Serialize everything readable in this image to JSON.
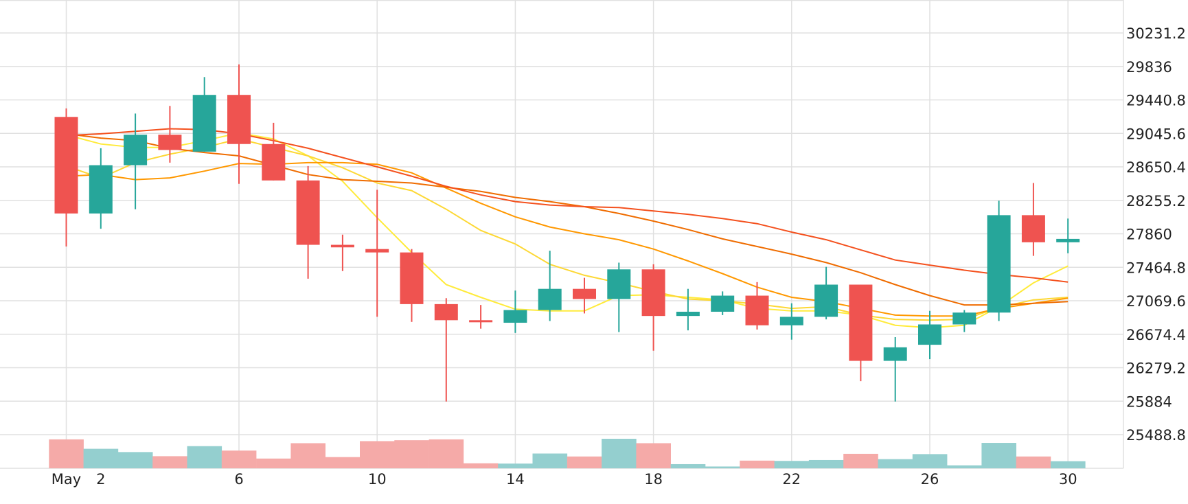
{
  "chart_data": {
    "type": "candlestick",
    "y_range": [
      25291.2,
      30428.8
    ],
    "y_ticks": [
      30231.2,
      29836,
      29440.8,
      29045.6,
      28650.4,
      28255.2,
      27860,
      27464.8,
      27069.6,
      26674.4,
      26279.2,
      25884,
      25488.8
    ],
    "x_tick_labels": [
      {
        "day": 1,
        "label": "May"
      },
      {
        "day": 2,
        "label": "2"
      },
      {
        "day": 6,
        "label": "6"
      },
      {
        "day": 10,
        "label": "10"
      },
      {
        "day": 14,
        "label": "14"
      },
      {
        "day": 18,
        "label": "18"
      },
      {
        "day": 22,
        "label": "22"
      },
      {
        "day": 26,
        "label": "26"
      },
      {
        "day": 30,
        "label": "30"
      }
    ],
    "colors": {
      "up": "#26a69a",
      "down": "#ef5350",
      "up_volume": "#94cfcf",
      "down_volume": "#f5aaa8",
      "grid": "#e0e0e0"
    },
    "candles": [
      {
        "day": 1,
        "open": 29240,
        "high": 29340,
        "low": 27710,
        "close": 28100,
        "volume": 0.98
      },
      {
        "day": 2,
        "open": 28100,
        "high": 28870,
        "low": 27920,
        "close": 28670,
        "volume": 0.66
      },
      {
        "day": 3,
        "open": 28670,
        "high": 29280,
        "low": 28150,
        "close": 29030,
        "volume": 0.55
      },
      {
        "day": 4,
        "open": 29030,
        "high": 29370,
        "low": 28700,
        "close": 28850,
        "volume": 0.41
      },
      {
        "day": 5,
        "open": 28830,
        "high": 29710,
        "low": 28830,
        "close": 29500,
        "volume": 0.75
      },
      {
        "day": 6,
        "open": 29500,
        "high": 29860,
        "low": 28450,
        "close": 28920,
        "volume": 0.6
      },
      {
        "day": 7,
        "open": 28920,
        "high": 29170,
        "low": 28490,
        "close": 28490,
        "volume": 0.33
      },
      {
        "day": 8,
        "open": 28490,
        "high": 28660,
        "low": 27330,
        "close": 27730,
        "volume": 0.85
      },
      {
        "day": 9,
        "open": 27730,
        "high": 27850,
        "low": 27420,
        "close": 27700,
        "volume": 0.38
      },
      {
        "day": 10,
        "open": 27680,
        "high": 28380,
        "low": 26880,
        "close": 27640,
        "volume": 0.92
      },
      {
        "day": 11,
        "open": 27640,
        "high": 27680,
        "low": 26820,
        "close": 27030,
        "volume": 0.95
      },
      {
        "day": 12,
        "open": 27030,
        "high": 27100,
        "low": 25880,
        "close": 26840,
        "volume": 0.98
      },
      {
        "day": 13,
        "open": 26840,
        "high": 27020,
        "low": 26740,
        "close": 26820,
        "volume": 0.17
      },
      {
        "day": 14,
        "open": 26810,
        "high": 27190,
        "low": 26690,
        "close": 26960,
        "volume": 0.16
      },
      {
        "day": 15,
        "open": 26960,
        "high": 27660,
        "low": 26830,
        "close": 27210,
        "volume": 0.5
      },
      {
        "day": 16,
        "open": 27210,
        "high": 27340,
        "low": 26920,
        "close": 27090,
        "volume": 0.4
      },
      {
        "day": 17,
        "open": 27090,
        "high": 27520,
        "low": 26700,
        "close": 27440,
        "volume": 1.0
      },
      {
        "day": 18,
        "open": 27440,
        "high": 27500,
        "low": 26480,
        "close": 26890,
        "volume": 0.85
      },
      {
        "day": 19,
        "open": 26890,
        "high": 27210,
        "low": 26720,
        "close": 26940,
        "volume": 0.14
      },
      {
        "day": 20,
        "open": 26940,
        "high": 27180,
        "low": 26900,
        "close": 27130,
        "volume": 0.06
      },
      {
        "day": 21,
        "open": 27130,
        "high": 27290,
        "low": 26730,
        "close": 26780,
        "volume": 0.26
      },
      {
        "day": 22,
        "open": 26780,
        "high": 27040,
        "low": 26610,
        "close": 26880,
        "volume": 0.25
      },
      {
        "day": 23,
        "open": 26880,
        "high": 27470,
        "low": 26850,
        "close": 27260,
        "volume": 0.28
      },
      {
        "day": 24,
        "open": 27260,
        "high": 27260,
        "low": 26120,
        "close": 26360,
        "volume": 0.49
      },
      {
        "day": 25,
        "open": 26360,
        "high": 26640,
        "low": 25880,
        "close": 26520,
        "volume": 0.31
      },
      {
        "day": 26,
        "open": 26550,
        "high": 26950,
        "low": 26380,
        "close": 26790,
        "volume": 0.48
      },
      {
        "day": 27,
        "open": 26790,
        "high": 26960,
        "low": 26700,
        "close": 26930,
        "volume": 0.1
      },
      {
        "day": 28,
        "open": 26930,
        "high": 28250,
        "low": 26830,
        "close": 28080,
        "volume": 0.86
      },
      {
        "day": 29,
        "open": 28080,
        "high": 28460,
        "low": 27600,
        "close": 27760,
        "volume": 0.4
      },
      {
        "day": 30,
        "open": 27760,
        "high": 28040,
        "low": 27630,
        "close": 27800,
        "volume": 0.24
      }
    ],
    "moving_averages": [
      {
        "color": "#ffeb3b",
        "points": [
          [
            1,
            29030
          ],
          [
            2,
            28920
          ],
          [
            3,
            28880
          ],
          [
            4,
            28880
          ],
          [
            5,
            28960
          ],
          [
            6,
            29050
          ],
          [
            7,
            28980
          ],
          [
            8,
            28780
          ],
          [
            9,
            28480
          ],
          [
            10,
            28050
          ],
          [
            11,
            27640
          ],
          [
            12,
            27260
          ],
          [
            13,
            27110
          ],
          [
            14,
            26970
          ],
          [
            15,
            26950
          ],
          [
            16,
            26950
          ],
          [
            17,
            27130
          ],
          [
            18,
            27140
          ],
          [
            19,
            27110
          ],
          [
            20,
            27080
          ],
          [
            21,
            26980
          ],
          [
            22,
            26950
          ],
          [
            23,
            26950
          ],
          [
            24,
            26900
          ],
          [
            25,
            26780
          ],
          [
            26,
            26750
          ],
          [
            27,
            26780
          ],
          [
            28,
            27000
          ],
          [
            29,
            27280
          ],
          [
            30,
            27480
          ]
        ]
      },
      {
        "color": "#fdd835",
        "points": [
          [
            1,
            28660
          ],
          [
            2,
            28520
          ],
          [
            3,
            28700
          ],
          [
            4,
            28800
          ],
          [
            5,
            28880
          ],
          [
            6,
            28980
          ],
          [
            7,
            28880
          ],
          [
            8,
            28780
          ],
          [
            9,
            28640
          ],
          [
            10,
            28460
          ],
          [
            11,
            28370
          ],
          [
            12,
            28150
          ],
          [
            13,
            27900
          ],
          [
            14,
            27740
          ],
          [
            15,
            27500
          ],
          [
            16,
            27370
          ],
          [
            17,
            27280
          ],
          [
            18,
            27180
          ],
          [
            19,
            27090
          ],
          [
            20,
            27070
          ],
          [
            21,
            27030
          ],
          [
            22,
            26980
          ],
          [
            23,
            27000
          ],
          [
            24,
            26900
          ],
          [
            25,
            26850
          ],
          [
            26,
            26840
          ],
          [
            27,
            26850
          ],
          [
            28,
            26990
          ],
          [
            29,
            27080
          ],
          [
            30,
            27110
          ]
        ]
      },
      {
        "color": "#ff9800",
        "points": [
          [
            1,
            28540
          ],
          [
            2,
            28560
          ],
          [
            3,
            28500
          ],
          [
            4,
            28520
          ],
          [
            5,
            28600
          ],
          [
            6,
            28690
          ],
          [
            7,
            28680
          ],
          [
            8,
            28700
          ],
          [
            9,
            28700
          ],
          [
            10,
            28680
          ],
          [
            11,
            28580
          ],
          [
            12,
            28400
          ],
          [
            13,
            28220
          ],
          [
            14,
            28060
          ],
          [
            15,
            27940
          ],
          [
            16,
            27860
          ],
          [
            17,
            27790
          ],
          [
            18,
            27680
          ],
          [
            19,
            27540
          ],
          [
            20,
            27390
          ],
          [
            21,
            27230
          ],
          [
            22,
            27110
          ],
          [
            23,
            27060
          ],
          [
            24,
            26980
          ],
          [
            25,
            26900
          ],
          [
            26,
            26890
          ],
          [
            27,
            26890
          ],
          [
            28,
            26980
          ],
          [
            29,
            27040
          ],
          [
            30,
            27100
          ]
        ]
      },
      {
        "color": "#ef6c00",
        "points": [
          [
            1,
            29040
          ],
          [
            2,
            28990
          ],
          [
            3,
            28960
          ],
          [
            4,
            28870
          ],
          [
            5,
            28820
          ],
          [
            6,
            28780
          ],
          [
            7,
            28670
          ],
          [
            8,
            28560
          ],
          [
            9,
            28500
          ],
          [
            10,
            28480
          ],
          [
            11,
            28460
          ],
          [
            12,
            28410
          ],
          [
            13,
            28360
          ],
          [
            14,
            28290
          ],
          [
            15,
            28240
          ],
          [
            16,
            28180
          ],
          [
            17,
            28100
          ],
          [
            18,
            28010
          ],
          [
            19,
            27910
          ],
          [
            20,
            27800
          ],
          [
            21,
            27710
          ],
          [
            22,
            27620
          ],
          [
            23,
            27520
          ],
          [
            24,
            27400
          ],
          [
            25,
            27260
          ],
          [
            26,
            27130
          ],
          [
            27,
            27020
          ],
          [
            28,
            27020
          ],
          [
            29,
            27040
          ],
          [
            30,
            27060
          ]
        ]
      },
      {
        "color": "#f4511e",
        "points": [
          [
            1,
            29020
          ],
          [
            2,
            29040
          ],
          [
            3,
            29070
          ],
          [
            4,
            29100
          ],
          [
            5,
            29090
          ],
          [
            6,
            29040
          ],
          [
            7,
            28960
          ],
          [
            8,
            28870
          ],
          [
            9,
            28760
          ],
          [
            10,
            28650
          ],
          [
            11,
            28540
          ],
          [
            12,
            28420
          ],
          [
            13,
            28320
          ],
          [
            14,
            28240
          ],
          [
            15,
            28200
          ],
          [
            16,
            28180
          ],
          [
            17,
            28170
          ],
          [
            18,
            28130
          ],
          [
            19,
            28090
          ],
          [
            20,
            28040
          ],
          [
            21,
            27980
          ],
          [
            22,
            27880
          ],
          [
            23,
            27790
          ],
          [
            24,
            27670
          ],
          [
            25,
            27550
          ],
          [
            26,
            27490
          ],
          [
            27,
            27430
          ],
          [
            28,
            27380
          ],
          [
            29,
            27340
          ],
          [
            30,
            27290
          ]
        ]
      }
    ]
  }
}
